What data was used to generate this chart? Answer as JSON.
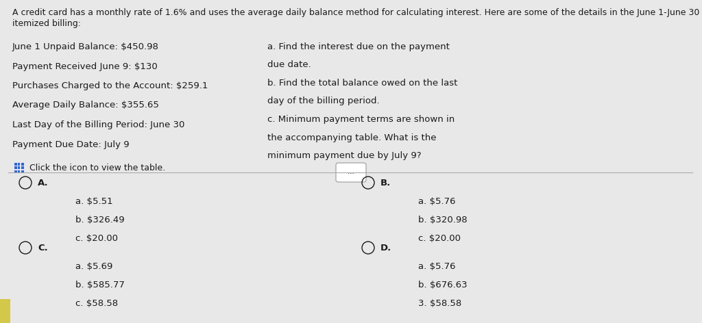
{
  "bg_color": "#e8e8e8",
  "header_line1": "A credit card has a monthly rate of 1.6% and uses the average daily balance method for calculating interest. Here are some of the details in the June 1-June 30",
  "header_line2": "itemized billing:",
  "left_col_lines": [
    "June 1 Unpaid Balance: $450.98",
    "Payment Received June 9: $130",
    "Purchases Charged to the Account: $259.1",
    "Average Daily Balance: $355.65",
    "Last Day of the Billing Period: June 30",
    "Payment Due Date: July 9"
  ],
  "click_text": "Click the icon to view the table.",
  "right_col_lines": [
    "a. Find the interest due on the payment",
    "due date.",
    "b. Find the total balance owed on the last",
    "day of the billing period.",
    "c. Minimum payment terms are shown in",
    "the accompanying table. What is the",
    "minimum payment due by July 9?"
  ],
  "answer_A_label": "A.",
  "answer_A_lines": [
    "a. $5.51",
    "b. $326.49",
    "c. $20.00"
  ],
  "answer_B_label": "B.",
  "answer_B_lines": [
    "a. $5.76",
    "b. $320.98",
    "c. $20.00"
  ],
  "answer_C_label": "C.",
  "answer_C_lines": [
    "a. $5.69",
    "b. $585.77",
    "c. $58.58"
  ],
  "answer_D_label": "D.",
  "answer_D_lines": [
    "a. $5.76",
    "b. $676.63",
    "3. $58.58"
  ],
  "font_size_header": 9.0,
  "font_size_body": 9.5,
  "font_size_answer": 9.5,
  "text_color": "#1a1a1a",
  "divider_color": "#aaaaaa"
}
